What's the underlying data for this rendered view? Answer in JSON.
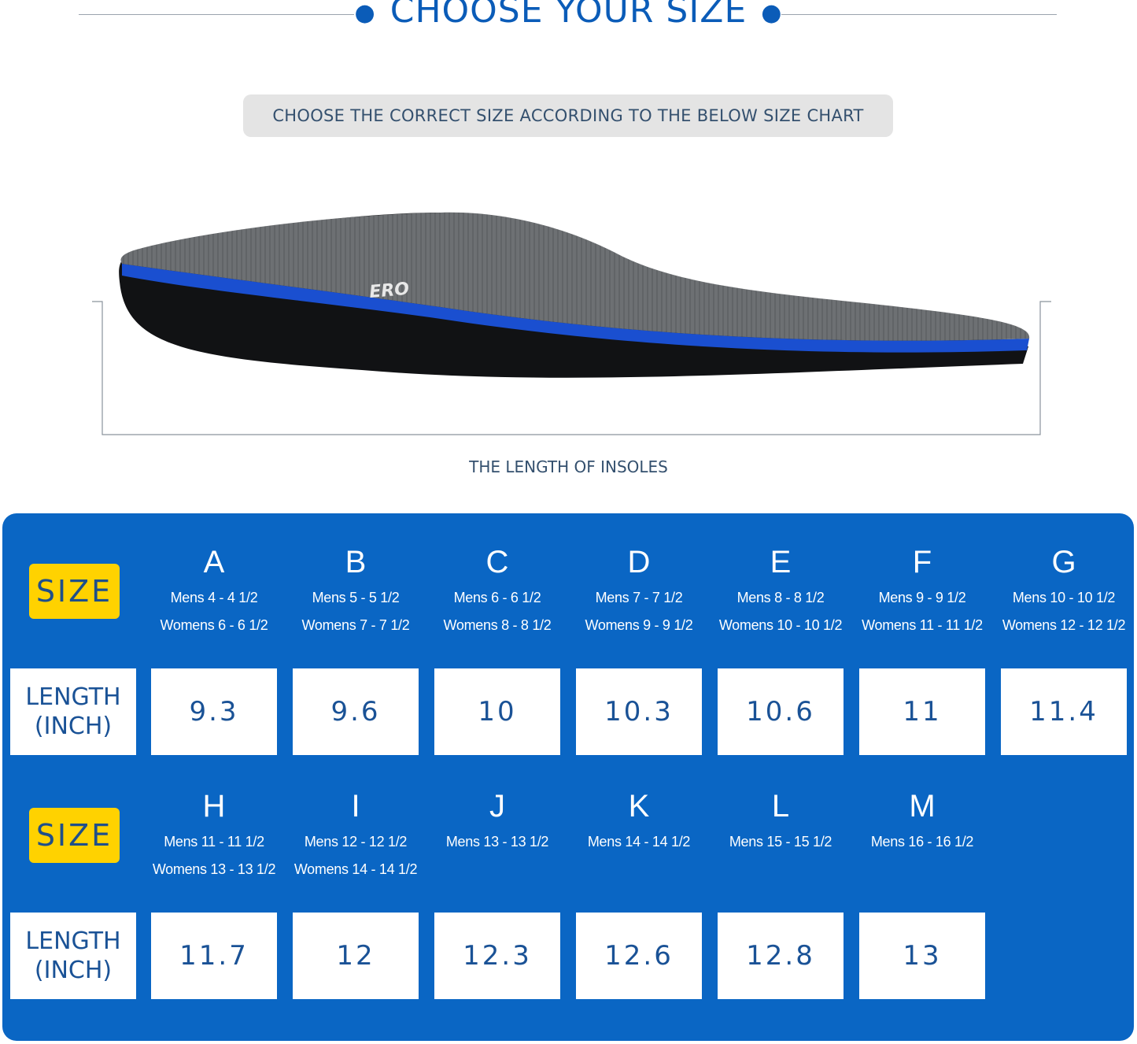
{
  "header": {
    "title": "CHOOSE YOUR SIZE",
    "instruction": "CHOOSE THE CORRECT SIZE ACCORDING TO THE BELOW SIZE CHART"
  },
  "insole": {
    "caption": "THE LENGTH OF INSOLES",
    "logo_text": "ERO"
  },
  "chart": {
    "size_label": "SIZE",
    "length_label_1": "LENGTH",
    "length_label_2": "(INCH)",
    "colors": {
      "panel": "#0a66c4",
      "badge": "#ffd200",
      "text": "#1a5296"
    },
    "rows": [
      {
        "sizes": [
          {
            "letter": "A",
            "mens": "Mens 4 - 4 1/2",
            "womens": "Womens 6 - 6 1/2",
            "length": "9.3"
          },
          {
            "letter": "B",
            "mens": "Mens 5 - 5 1/2",
            "womens": "Womens 7 - 7 1/2",
            "length": "9.6"
          },
          {
            "letter": "C",
            "mens": "Mens 6 - 6 1/2",
            "womens": "Womens 8 - 8 1/2",
            "length": "10"
          },
          {
            "letter": "D",
            "mens": "Mens 7 - 7 1/2",
            "womens": "Womens 9 - 9 1/2",
            "length": "10.3"
          },
          {
            "letter": "E",
            "mens": "Mens 8 - 8 1/2",
            "womens": "Womens 10 - 10 1/2",
            "length": "10.6"
          },
          {
            "letter": "F",
            "mens": "Mens 9 - 9 1/2",
            "womens": "Womens 11 - 11 1/2",
            "length": "11"
          },
          {
            "letter": "G",
            "mens": "Mens 10 - 10 1/2",
            "womens": "Womens 12 - 12 1/2",
            "length": "11.4"
          }
        ]
      },
      {
        "sizes": [
          {
            "letter": "H",
            "mens": "Mens 11 - 11 1/2",
            "womens": "Womens 13 - 13 1/2",
            "length": "11.7"
          },
          {
            "letter": "I",
            "mens": "Mens 12 - 12 1/2",
            "womens": "Womens 14 - 14 1/2",
            "length": "12"
          },
          {
            "letter": "J",
            "mens": "Mens 13 - 13 1/2",
            "womens": "",
            "length": "12.3"
          },
          {
            "letter": "K",
            "mens": "Mens 14 - 14 1/2",
            "womens": "",
            "length": "12.6"
          },
          {
            "letter": "L",
            "mens": "Mens 15 - 15 1/2",
            "womens": "",
            "length": "12.8"
          },
          {
            "letter": "M",
            "mens": "Mens 16 - 16 1/2",
            "womens": "",
            "length": "13"
          }
        ]
      }
    ]
  }
}
